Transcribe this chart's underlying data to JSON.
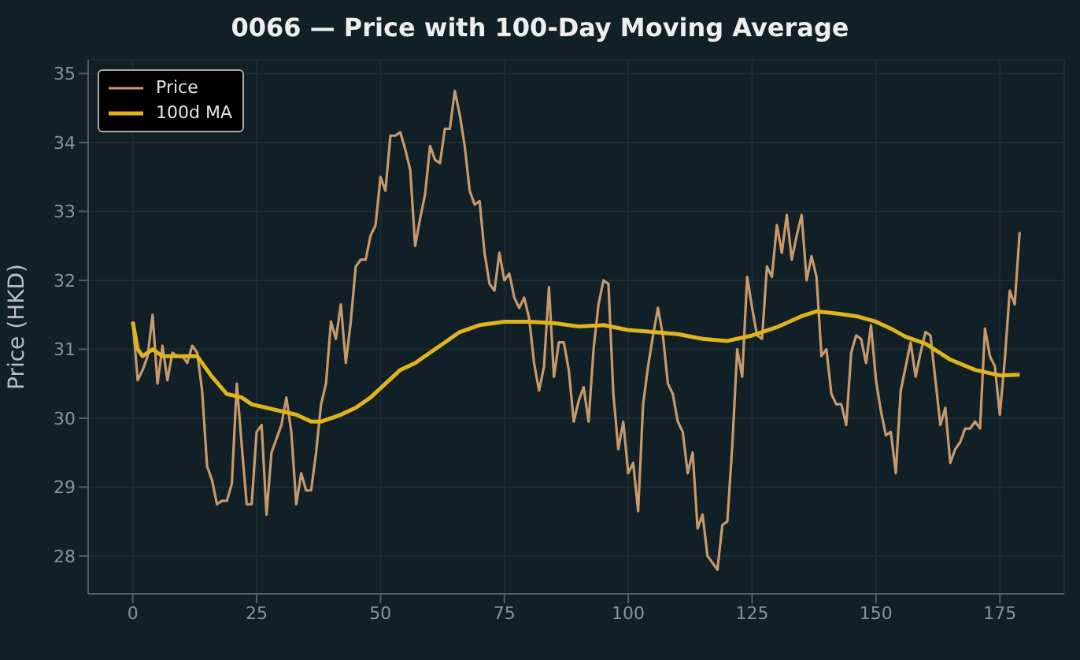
{
  "chart_data": {
    "type": "line",
    "title": "0066 — Price with 100-Day Moving Average",
    "ylabel": "Price (HKD)",
    "xlim": [
      -9,
      188
    ],
    "ylim": [
      27.45,
      35.2
    ],
    "xticks": [
      0,
      25,
      50,
      75,
      100,
      125,
      150,
      175
    ],
    "yticks": [
      28,
      29,
      30,
      31,
      32,
      33,
      34,
      35
    ],
    "grid": true,
    "legend": "top left",
    "line_style": "solid",
    "marker": "none",
    "series": [
      {
        "name": "Price",
        "color": "#c8996b",
        "x": [
          0,
          1,
          2,
          3,
          4,
          5,
          6,
          7,
          8,
          9,
          10,
          11,
          12,
          13,
          14,
          15,
          16,
          17,
          18,
          19,
          20,
          21,
          22,
          23,
          24,
          25,
          26,
          27,
          28,
          29,
          30,
          31,
          32,
          33,
          34,
          35,
          36,
          37,
          38,
          39,
          40,
          41,
          42,
          43,
          44,
          45,
          46,
          47,
          48,
          49,
          50,
          51,
          52,
          53,
          54,
          55,
          56,
          57,
          58,
          59,
          60,
          61,
          62,
          63,
          64,
          65,
          66,
          67,
          68,
          69,
          70,
          71,
          72,
          73,
          74,
          75,
          76,
          77,
          78,
          79,
          80,
          81,
          82,
          83,
          84,
          85,
          86,
          87,
          88,
          89,
          90,
          91,
          92,
          93,
          94,
          95,
          96,
          97,
          98,
          99,
          100,
          101,
          102,
          103,
          104,
          105,
          106,
          107,
          108,
          109,
          110,
          111,
          112,
          113,
          114,
          115,
          116,
          117,
          118,
          119,
          120,
          121,
          122,
          123,
          124,
          125,
          126,
          127,
          128,
          129,
          130,
          131,
          132,
          133,
          134,
          135,
          136,
          137,
          138,
          139,
          140,
          141,
          142,
          143,
          144,
          145,
          146,
          147,
          148,
          149,
          150,
          151,
          152,
          153,
          154,
          155,
          156,
          157,
          158,
          159,
          160,
          161,
          162,
          163,
          164,
          165,
          166,
          167,
          168,
          169,
          170,
          171,
          172,
          173,
          174,
          175,
          176,
          177,
          178,
          179
        ],
        "values": [
          31.4,
          30.55,
          30.7,
          30.9,
          31.5,
          30.5,
          31.05,
          30.55,
          30.95,
          30.9,
          30.9,
          30.8,
          31.05,
          30.95,
          30.4,
          29.3,
          29.1,
          28.75,
          28.8,
          28.8,
          29.05,
          30.5,
          29.6,
          28.75,
          28.75,
          29.8,
          29.9,
          28.6,
          29.5,
          29.7,
          29.9,
          30.3,
          29.8,
          28.75,
          29.2,
          28.95,
          28.95,
          29.5,
          30.2,
          30.5,
          31.4,
          31.15,
          31.65,
          30.8,
          31.4,
          32.2,
          32.3,
          32.3,
          32.65,
          32.8,
          33.5,
          33.3,
          34.1,
          34.1,
          34.15,
          33.9,
          33.6,
          32.5,
          32.9,
          33.25,
          33.95,
          33.75,
          33.7,
          34.2,
          34.2,
          34.75,
          34.4,
          33.95,
          33.3,
          33.1,
          33.15,
          32.4,
          31.95,
          31.85,
          32.4,
          32.0,
          32.1,
          31.75,
          31.6,
          31.75,
          31.45,
          30.8,
          30.4,
          30.75,
          31.9,
          30.6,
          31.1,
          31.1,
          30.7,
          29.95,
          30.25,
          30.45,
          29.95,
          31.0,
          31.65,
          32.0,
          31.95,
          30.35,
          29.55,
          29.95,
          29.2,
          29.35,
          28.65,
          30.2,
          30.75,
          31.2,
          31.6,
          31.2,
          30.5,
          30.35,
          29.95,
          29.8,
          29.2,
          29.5,
          28.4,
          28.6,
          28.0,
          27.9,
          27.8,
          28.45,
          28.5,
          29.6,
          31.0,
          30.6,
          32.05,
          31.6,
          31.2,
          31.15,
          32.2,
          32.05,
          32.8,
          32.4,
          32.95,
          32.3,
          32.65,
          32.95,
          32.0,
          32.35,
          32.05,
          30.9,
          31.0,
          30.35,
          30.2,
          30.2,
          29.9,
          30.95,
          31.2,
          31.15,
          30.8,
          31.35,
          30.55,
          30.1,
          29.75,
          29.8,
          29.2,
          30.4,
          30.75,
          31.1,
          30.6,
          30.95,
          31.25,
          31.2,
          30.55,
          29.9,
          30.15,
          29.35,
          29.55,
          29.65,
          29.85,
          29.85,
          29.95,
          29.85,
          31.3,
          30.9,
          30.75,
          30.05,
          30.85,
          31.85,
          31.65,
          32.7
        ]
      },
      {
        "name": "100d MA",
        "color": "#e0b41c",
        "x": [
          0,
          1,
          2,
          4,
          6,
          10,
          13,
          16,
          19,
          22,
          24,
          27,
          30,
          33,
          36,
          38,
          42,
          45,
          48,
          51,
          54,
          57,
          60,
          63,
          66,
          70,
          75,
          80,
          85,
          90,
          95,
          100,
          105,
          110,
          115,
          120,
          125,
          130,
          135,
          138,
          142,
          146,
          150,
          153,
          156,
          160,
          165,
          170,
          175,
          179
        ],
        "values": [
          31.4,
          31.0,
          30.9,
          31.0,
          30.9,
          30.9,
          30.9,
          30.6,
          30.35,
          30.3,
          30.2,
          30.15,
          30.1,
          30.05,
          29.95,
          29.95,
          30.05,
          30.15,
          30.3,
          30.5,
          30.7,
          30.8,
          30.95,
          31.1,
          31.25,
          31.35,
          31.4,
          31.4,
          31.38,
          31.33,
          31.35,
          31.28,
          31.25,
          31.22,
          31.15,
          31.12,
          31.2,
          31.32,
          31.48,
          31.55,
          31.52,
          31.48,
          31.4,
          31.3,
          31.18,
          31.08,
          30.85,
          30.7,
          30.62,
          30.63
        ]
      }
    ]
  }
}
